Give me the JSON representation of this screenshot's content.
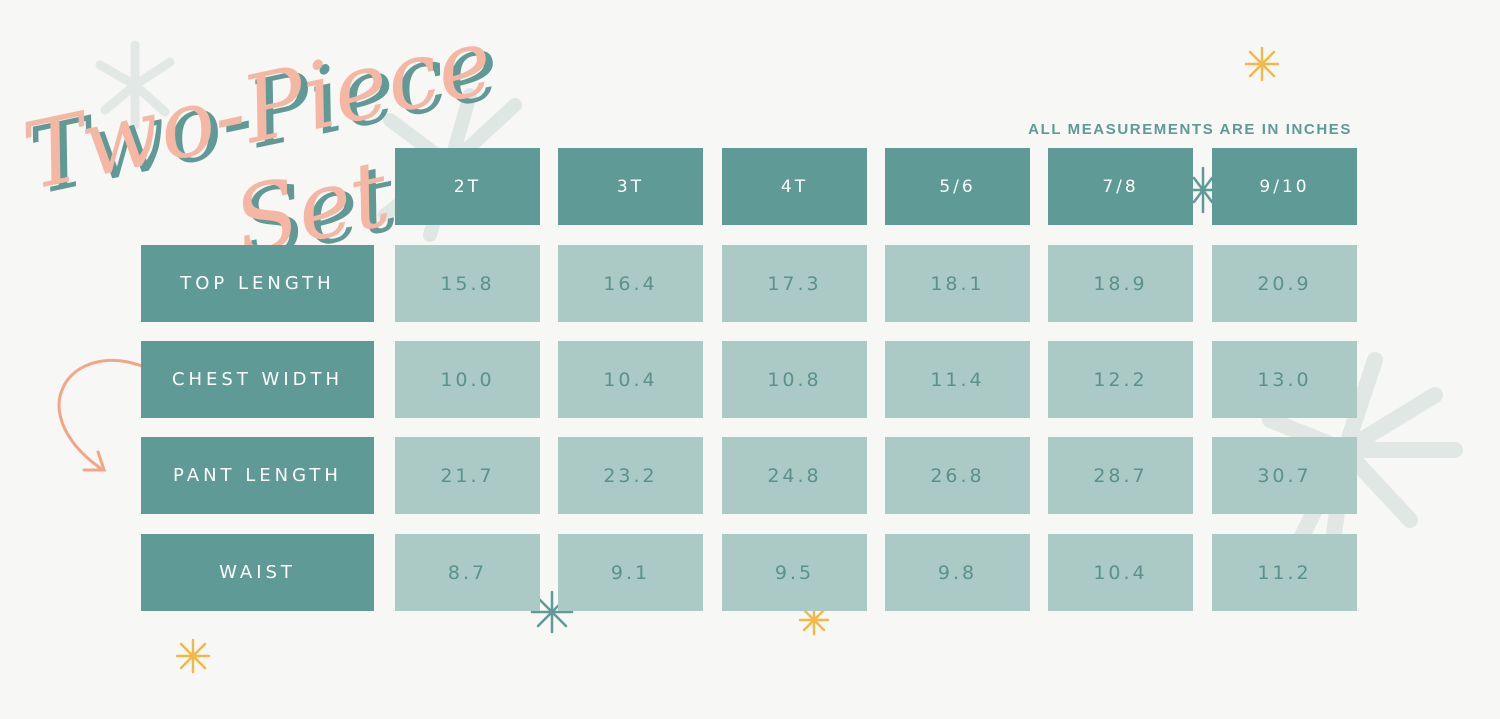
{
  "title": {
    "line1": "Two-Piece",
    "line2": "Set"
  },
  "note": "ALL MEASUREMENTS ARE IN INCHES",
  "colors": {
    "header_bg": "#5f9a96",
    "cell_bg": "#accac5",
    "title_pink": "#f5b7a3",
    "title_teal": "#5f9a96",
    "star_gold": "#f3b948",
    "arrow": "#f4a587"
  },
  "sizes": [
    "2T",
    "3T",
    "4T",
    "5/6",
    "7/8",
    "9/10"
  ],
  "rows": [
    {
      "label": "TOP LENGTH",
      "values": [
        "15.8",
        "16.4",
        "17.3",
        "18.1",
        "18.9",
        "20.9"
      ]
    },
    {
      "label": "CHEST WIDTH",
      "values": [
        "10.0",
        "10.4",
        "10.8",
        "11.4",
        "12.2",
        "13.0"
      ]
    },
    {
      "label": "PANT LENGTH",
      "values": [
        "21.7",
        "23.2",
        "24.8",
        "26.8",
        "28.7",
        "30.7"
      ]
    },
    {
      "label": "WAIST",
      "values": [
        "8.7",
        "9.1",
        "9.5",
        "9.8",
        "10.4",
        "11.2"
      ]
    }
  ],
  "decorations": [
    "sparkle-icon",
    "starburst-icon",
    "curved-arrow-icon"
  ]
}
